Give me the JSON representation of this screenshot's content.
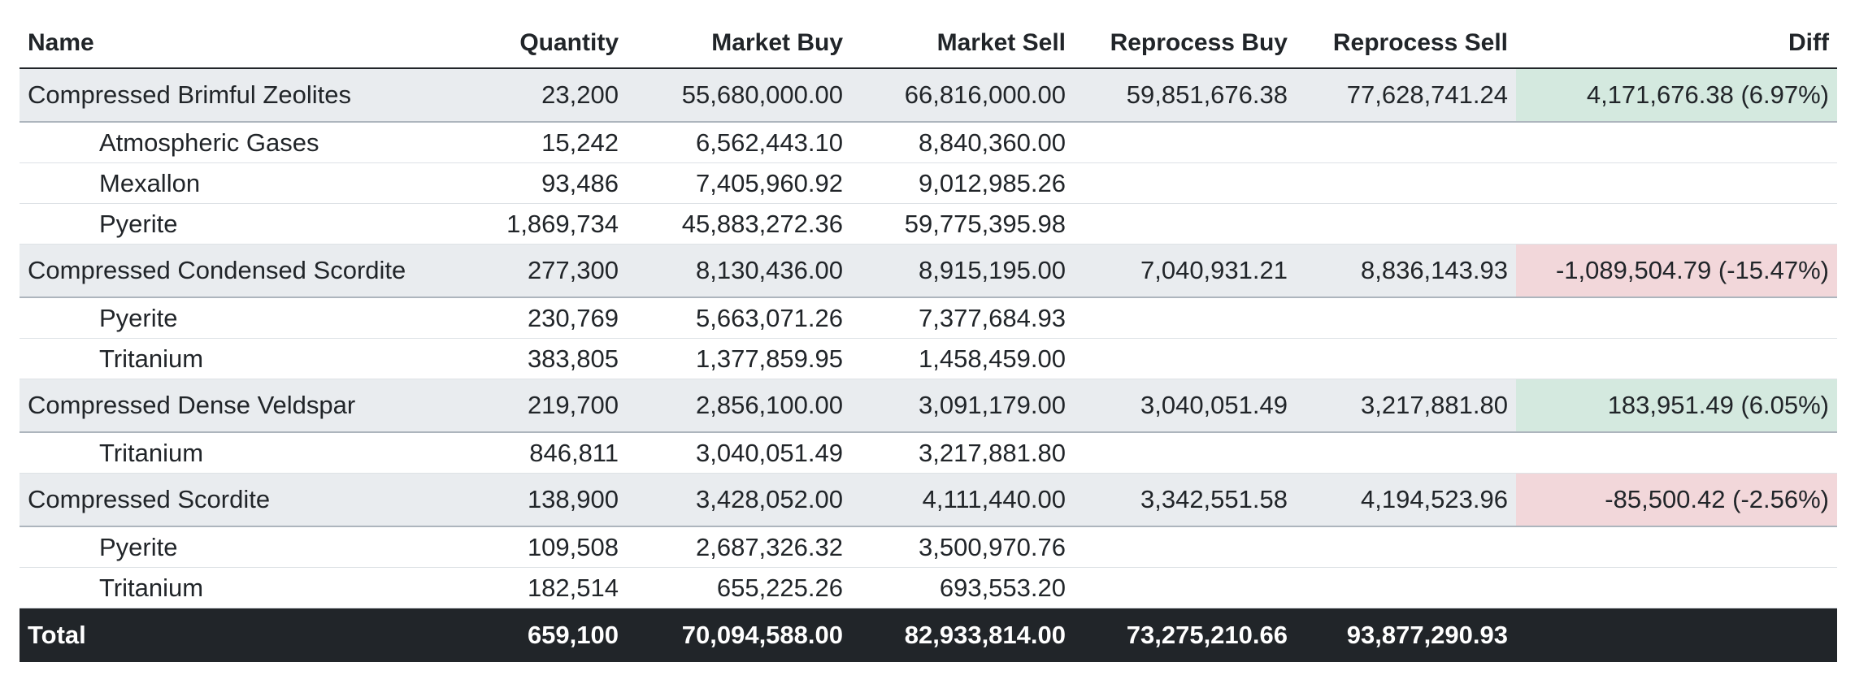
{
  "headers": {
    "name": "Name",
    "quantity": "Quantity",
    "market_buy": "Market Buy",
    "market_sell": "Market Sell",
    "reprocess_buy": "Reprocess Buy",
    "reprocess_sell": "Reprocess Sell",
    "diff": "Diff"
  },
  "groups": [
    {
      "name": "Compressed Brimful Zeolites",
      "quantity": "23,200",
      "market_buy": "55,680,000.00",
      "market_sell": "66,816,000.00",
      "reprocess_buy": "59,851,676.38",
      "reprocess_sell": "77,628,741.24",
      "diff": "4,171,676.38 (6.97%)",
      "diff_sign": "positive",
      "children": [
        {
          "name": "Atmospheric Gases",
          "quantity": "15,242",
          "market_buy": "6,562,443.10",
          "market_sell": "8,840,360.00"
        },
        {
          "name": "Mexallon",
          "quantity": "93,486",
          "market_buy": "7,405,960.92",
          "market_sell": "9,012,985.26"
        },
        {
          "name": "Pyerite",
          "quantity": "1,869,734",
          "market_buy": "45,883,272.36",
          "market_sell": "59,775,395.98"
        }
      ]
    },
    {
      "name": "Compressed Condensed Scordite",
      "quantity": "277,300",
      "market_buy": "8,130,436.00",
      "market_sell": "8,915,195.00",
      "reprocess_buy": "7,040,931.21",
      "reprocess_sell": "8,836,143.93",
      "diff": "-1,089,504.79 (-15.47%)",
      "diff_sign": "negative",
      "children": [
        {
          "name": "Pyerite",
          "quantity": "230,769",
          "market_buy": "5,663,071.26",
          "market_sell": "7,377,684.93"
        },
        {
          "name": "Tritanium",
          "quantity": "383,805",
          "market_buy": "1,377,859.95",
          "market_sell": "1,458,459.00"
        }
      ]
    },
    {
      "name": "Compressed Dense Veldspar",
      "quantity": "219,700",
      "market_buy": "2,856,100.00",
      "market_sell": "3,091,179.00",
      "reprocess_buy": "3,040,051.49",
      "reprocess_sell": "3,217,881.80",
      "diff": "183,951.49 (6.05%)",
      "diff_sign": "positive",
      "children": [
        {
          "name": "Tritanium",
          "quantity": "846,811",
          "market_buy": "3,040,051.49",
          "market_sell": "3,217,881.80"
        }
      ]
    },
    {
      "name": "Compressed Scordite",
      "quantity": "138,900",
      "market_buy": "3,428,052.00",
      "market_sell": "4,111,440.00",
      "reprocess_buy": "3,342,551.58",
      "reprocess_sell": "4,194,523.96",
      "diff": "-85,500.42 (-2.56%)",
      "diff_sign": "negative",
      "children": [
        {
          "name": "Pyerite",
          "quantity": "109,508",
          "market_buy": "2,687,326.32",
          "market_sell": "3,500,970.76"
        },
        {
          "name": "Tritanium",
          "quantity": "182,514",
          "market_buy": "655,225.26",
          "market_sell": "693,553.20"
        }
      ]
    }
  ],
  "total": {
    "label": "Total",
    "quantity": "659,100",
    "market_buy": "70,094,588.00",
    "market_sell": "82,933,814.00",
    "reprocess_buy": "73,275,210.66",
    "reprocess_sell": "93,877,290.93",
    "diff": ""
  },
  "colors": {
    "positive_bg": "#d4e9df",
    "negative_bg": "#f2d7da",
    "parent_row_bg": "#e9ecef",
    "total_bg": "#212529"
  }
}
